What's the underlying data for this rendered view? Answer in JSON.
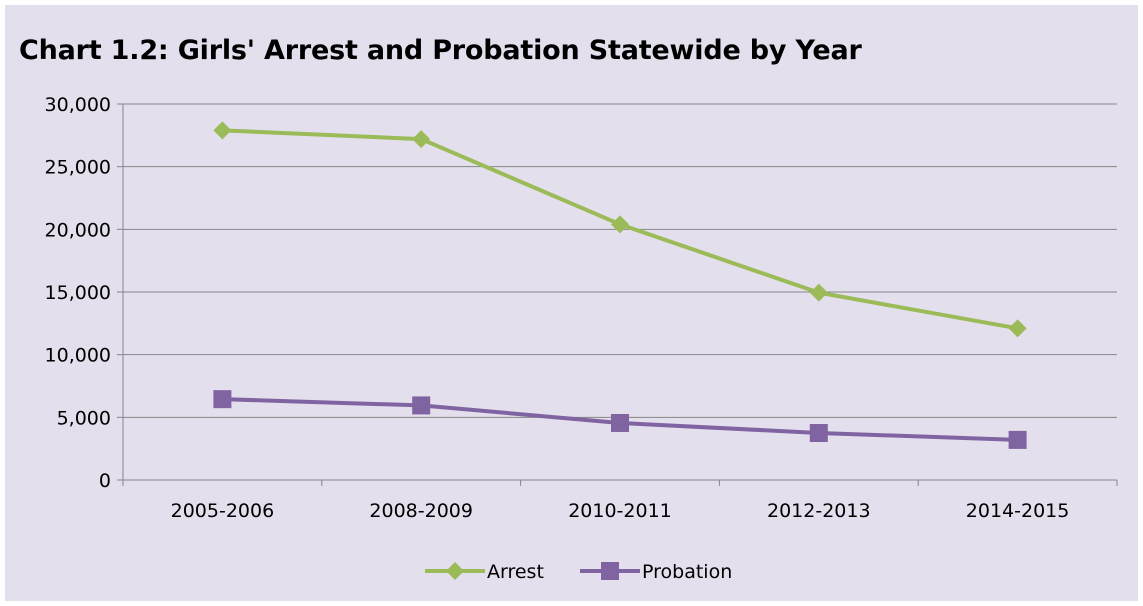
{
  "chart_data": {
    "type": "line",
    "title": "Chart 1.2: Girls' Arrest and Probation Statewide by Year",
    "xlabel": "",
    "ylabel": "",
    "categories": [
      "2005-2006",
      "2008-2009",
      "2010-2011",
      "2012-2013",
      "2014-2015"
    ],
    "ylim": [
      0,
      30000
    ],
    "y_ticks": [
      "0",
      "5,000",
      "10,000",
      "15,000",
      "20,000",
      "25,000",
      "30,000"
    ],
    "grid": true,
    "legend_position": "bottom",
    "series": [
      {
        "name": "Arrest",
        "values": [
          27900,
          27200,
          20400,
          14950,
          12100
        ],
        "color": "#9bbb59",
        "marker": "diamond"
      },
      {
        "name": "Probation",
        "values": [
          6450,
          5950,
          4550,
          3750,
          3200
        ],
        "color": "#8064a2",
        "marker": "square"
      }
    ],
    "background": "#e4dfec",
    "gridline_color": "#868686"
  }
}
